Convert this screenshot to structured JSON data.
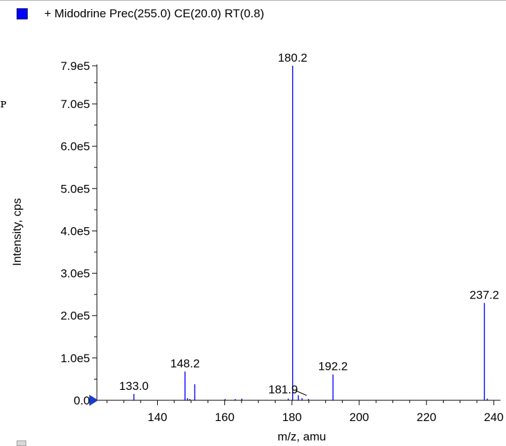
{
  "legend": {
    "color": "#0000ff",
    "label": "+ Midodrine Prec(255.0) CE(20.0) RT(0.8)"
  },
  "chart_data": {
    "type": "bar",
    "title": "",
    "xlabel": "m/z, amu",
    "ylabel": "Intensity, cps",
    "xlim": [
      122,
      242
    ],
    "ylim": [
      0,
      790000
    ],
    "x_ticks": [
      140,
      160,
      180,
      200,
      220,
      240
    ],
    "y_ticks": [
      {
        "value": 0,
        "label": "0.0"
      },
      {
        "value": 100000,
        "label": "1.0e5"
      },
      {
        "value": 200000,
        "label": "2.0e5"
      },
      {
        "value": 300000,
        "label": "3.0e5"
      },
      {
        "value": 400000,
        "label": "4.0e5"
      },
      {
        "value": 500000,
        "label": "5.0e5"
      },
      {
        "value": 600000,
        "label": "6.0e5"
      },
      {
        "value": 700000,
        "label": "7.0e5"
      },
      {
        "value": 790000,
        "label": "7.9e5"
      }
    ],
    "series_color": "#0000ff",
    "peaks": [
      {
        "mz": 133.0,
        "intensity": 15000,
        "label": "133.0"
      },
      {
        "mz": 148.2,
        "intensity": 68000,
        "label": "148.2"
      },
      {
        "mz": 148.9,
        "intensity": 5000
      },
      {
        "mz": 149.6,
        "intensity": 3000
      },
      {
        "mz": 151.1,
        "intensity": 38000
      },
      {
        "mz": 160.1,
        "intensity": 3000
      },
      {
        "mz": 163.1,
        "intensity": 3000
      },
      {
        "mz": 165.1,
        "intensity": 4000
      },
      {
        "mz": 178.9,
        "intensity": 4000
      },
      {
        "mz": 180.2,
        "intensity": 790000,
        "label": "180.2"
      },
      {
        "mz": 181.9,
        "intensity": 12000,
        "label": "181.9"
      },
      {
        "mz": 183.0,
        "intensity": 5000
      },
      {
        "mz": 184.9,
        "intensity": 3000
      },
      {
        "mz": 192.2,
        "intensity": 61000,
        "label": "192.2"
      },
      {
        "mz": 237.2,
        "intensity": 230000,
        "label": "237.2"
      },
      {
        "mz": 238.1,
        "intensity": 4000
      }
    ]
  }
}
